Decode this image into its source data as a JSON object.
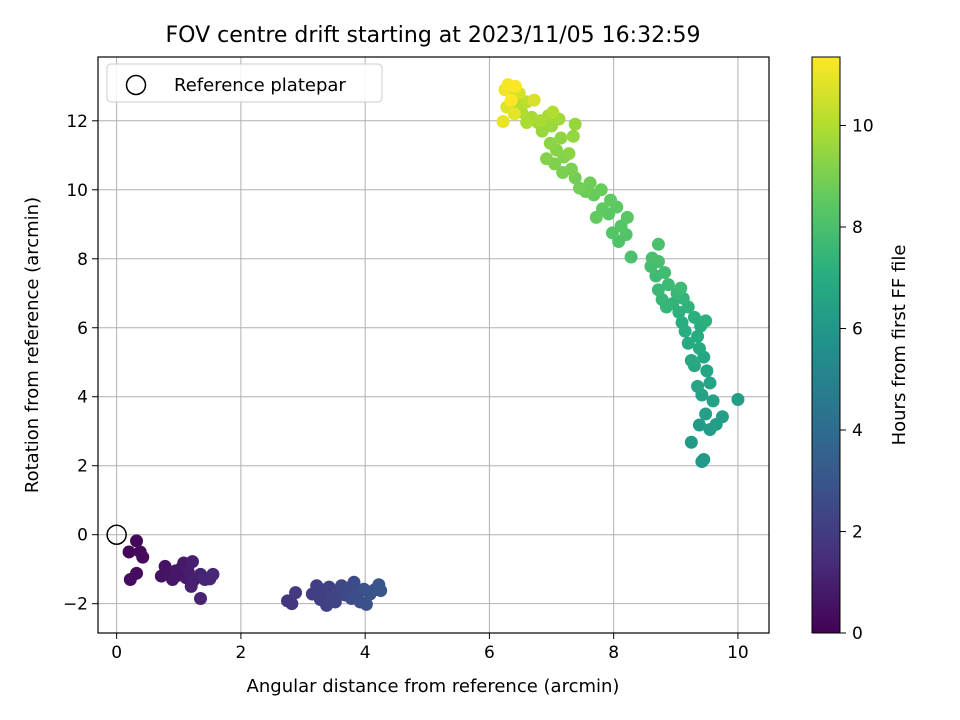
{
  "chart_data": {
    "type": "scatter",
    "title": "FOV centre drift starting at 2023/11/05 16:32:59",
    "xlabel": "Angular distance from reference (arcmin)",
    "ylabel": "Rotation from reference (arcmin)",
    "xlim": [
      -0.3,
      10.5
    ],
    "ylim": [
      -2.85,
      13.85
    ],
    "xticks": [
      0,
      2,
      4,
      6,
      8,
      10
    ],
    "yticks": [
      -2,
      0,
      2,
      4,
      6,
      8,
      10,
      12
    ],
    "xtick_labels": [
      "0",
      "2",
      "4",
      "6",
      "8",
      "10"
    ],
    "ytick_labels": [
      "−2",
      "0",
      "2",
      "4",
      "6",
      "8",
      "10",
      "12"
    ],
    "grid": true,
    "legend": {
      "position": "upper-left",
      "entries": [
        "Reference platepar"
      ]
    },
    "reference_point": {
      "x": 0,
      "y": 0,
      "label": "Reference platepar"
    },
    "colorbar": {
      "label": "Hours from first FF file",
      "range": [
        0,
        11.35
      ],
      "ticks": [
        0,
        2,
        4,
        6,
        8,
        10
      ],
      "tick_labels": [
        "0",
        "2",
        "4",
        "6",
        "8",
        "10"
      ],
      "colormap": "viridis"
    },
    "points": [
      {
        "x": 0.2,
        "y": -0.5,
        "t": 0.1
      },
      {
        "x": 0.32,
        "y": -0.18,
        "t": 0.2
      },
      {
        "x": 0.38,
        "y": -0.5,
        "t": 0.25
      },
      {
        "x": 0.42,
        "y": -0.65,
        "t": 0.3
      },
      {
        "x": 0.32,
        "y": -1.12,
        "t": 0.35
      },
      {
        "x": 0.22,
        "y": -1.3,
        "t": 0.4
      },
      {
        "x": 0.72,
        "y": -1.2,
        "t": 0.5
      },
      {
        "x": 0.78,
        "y": -0.92,
        "t": 0.55
      },
      {
        "x": 0.85,
        "y": -1.1,
        "t": 0.6
      },
      {
        "x": 0.9,
        "y": -1.3,
        "t": 0.65
      },
      {
        "x": 0.95,
        "y": -1.05,
        "t": 0.7
      },
      {
        "x": 1.05,
        "y": -0.95,
        "t": 0.75
      },
      {
        "x": 1.08,
        "y": -0.82,
        "t": 0.8
      },
      {
        "x": 1.12,
        "y": -1.25,
        "t": 0.85
      },
      {
        "x": 1.15,
        "y": -1.05,
        "t": 0.9
      },
      {
        "x": 1.22,
        "y": -0.78,
        "t": 0.95
      },
      {
        "x": 1.25,
        "y": -1.3,
        "t": 1.0
      },
      {
        "x": 1.2,
        "y": -1.5,
        "t": 1.05
      },
      {
        "x": 1.35,
        "y": -1.15,
        "t": 1.1
      },
      {
        "x": 1.35,
        "y": -1.85,
        "t": 1.12
      },
      {
        "x": 1.42,
        "y": -1.3,
        "t": 1.15
      },
      {
        "x": 1.5,
        "y": -1.28,
        "t": 1.2
      },
      {
        "x": 1.55,
        "y": -1.15,
        "t": 1.25
      },
      {
        "x": 0.98,
        "y": -1.18,
        "t": 0.72
      },
      {
        "x": 2.75,
        "y": -1.92,
        "t": 1.8
      },
      {
        "x": 2.82,
        "y": -2.0,
        "t": 1.85
      },
      {
        "x": 2.88,
        "y": -1.68,
        "t": 1.9
      },
      {
        "x": 3.15,
        "y": -1.72,
        "t": 2.0
      },
      {
        "x": 3.22,
        "y": -1.48,
        "t": 2.05
      },
      {
        "x": 3.28,
        "y": -1.88,
        "t": 2.1
      },
      {
        "x": 3.32,
        "y": -1.6,
        "t": 2.12
      },
      {
        "x": 3.38,
        "y": -2.05,
        "t": 2.15
      },
      {
        "x": 3.42,
        "y": -1.52,
        "t": 2.2
      },
      {
        "x": 3.45,
        "y": -1.8,
        "t": 2.25
      },
      {
        "x": 3.52,
        "y": -1.95,
        "t": 2.3
      },
      {
        "x": 3.58,
        "y": -1.62,
        "t": 2.35
      },
      {
        "x": 3.62,
        "y": -1.48,
        "t": 2.4
      },
      {
        "x": 3.68,
        "y": -1.75,
        "t": 2.45
      },
      {
        "x": 3.72,
        "y": -1.55,
        "t": 2.5
      },
      {
        "x": 3.78,
        "y": -1.85,
        "t": 2.55
      },
      {
        "x": 3.82,
        "y": -1.38,
        "t": 2.6
      },
      {
        "x": 3.88,
        "y": -1.7,
        "t": 2.65
      },
      {
        "x": 3.92,
        "y": -1.95,
        "t": 2.7
      },
      {
        "x": 3.98,
        "y": -1.58,
        "t": 2.75
      },
      {
        "x": 4.02,
        "y": -2.02,
        "t": 2.8
      },
      {
        "x": 4.08,
        "y": -1.72,
        "t": 2.85
      },
      {
        "x": 4.15,
        "y": -1.6,
        "t": 2.9
      },
      {
        "x": 4.22,
        "y": -1.45,
        "t": 2.95
      },
      {
        "x": 4.25,
        "y": -1.62,
        "t": 3.0
      },
      {
        "x": 9.42,
        "y": 2.12,
        "t": 6.0
      },
      {
        "x": 9.45,
        "y": 2.18,
        "t": 6.05
      },
      {
        "x": 9.25,
        "y": 2.68,
        "t": 6.1
      },
      {
        "x": 9.38,
        "y": 3.18,
        "t": 6.15
      },
      {
        "x": 9.55,
        "y": 3.05,
        "t": 6.2
      },
      {
        "x": 9.65,
        "y": 3.2,
        "t": 6.25
      },
      {
        "x": 9.75,
        "y": 3.42,
        "t": 6.3
      },
      {
        "x": 10.0,
        "y": 3.92,
        "t": 6.35
      },
      {
        "x": 9.48,
        "y": 3.5,
        "t": 6.4
      },
      {
        "x": 9.6,
        "y": 3.88,
        "t": 6.45
      },
      {
        "x": 9.42,
        "y": 4.05,
        "t": 6.5
      },
      {
        "x": 9.55,
        "y": 4.4,
        "t": 6.55
      },
      {
        "x": 9.35,
        "y": 4.3,
        "t": 6.6
      },
      {
        "x": 9.5,
        "y": 4.75,
        "t": 6.65
      },
      {
        "x": 9.3,
        "y": 4.9,
        "t": 6.7
      },
      {
        "x": 9.45,
        "y": 5.15,
        "t": 6.75
      },
      {
        "x": 9.25,
        "y": 5.05,
        "t": 6.8
      },
      {
        "x": 9.38,
        "y": 5.4,
        "t": 6.85
      },
      {
        "x": 9.2,
        "y": 5.55,
        "t": 6.9
      },
      {
        "x": 9.35,
        "y": 5.75,
        "t": 6.95
      },
      {
        "x": 9.15,
        "y": 5.9,
        "t": 7.0
      },
      {
        "x": 9.4,
        "y": 6.05,
        "t": 7.05
      },
      {
        "x": 9.1,
        "y": 6.15,
        "t": 7.1
      },
      {
        "x": 9.3,
        "y": 6.3,
        "t": 7.15
      },
      {
        "x": 9.48,
        "y": 6.2,
        "t": 7.2
      },
      {
        "x": 9.05,
        "y": 6.45,
        "t": 7.25
      },
      {
        "x": 9.2,
        "y": 6.6,
        "t": 7.3
      },
      {
        "x": 8.95,
        "y": 6.7,
        "t": 7.35
      },
      {
        "x": 9.12,
        "y": 6.85,
        "t": 7.4
      },
      {
        "x": 8.85,
        "y": 6.6,
        "t": 7.45
      },
      {
        "x": 8.78,
        "y": 6.82,
        "t": 7.5
      },
      {
        "x": 9.02,
        "y": 7.0,
        "t": 7.55
      },
      {
        "x": 8.72,
        "y": 7.1,
        "t": 7.6
      },
      {
        "x": 8.88,
        "y": 7.25,
        "t": 7.65
      },
      {
        "x": 9.08,
        "y": 7.15,
        "t": 7.7
      },
      {
        "x": 8.68,
        "y": 7.5,
        "t": 7.75
      },
      {
        "x": 8.82,
        "y": 7.6,
        "t": 7.8
      },
      {
        "x": 8.6,
        "y": 7.78,
        "t": 7.85
      },
      {
        "x": 8.72,
        "y": 7.92,
        "t": 7.9
      },
      {
        "x": 8.62,
        "y": 8.02,
        "t": 7.95
      },
      {
        "x": 8.72,
        "y": 8.42,
        "t": 8.0
      },
      {
        "x": 8.28,
        "y": 8.05,
        "t": 8.05
      },
      {
        "x": 8.08,
        "y": 8.5,
        "t": 8.15
      },
      {
        "x": 8.2,
        "y": 8.7,
        "t": 8.2
      },
      {
        "x": 7.98,
        "y": 8.75,
        "t": 8.25
      },
      {
        "x": 8.12,
        "y": 8.95,
        "t": 8.3
      },
      {
        "x": 8.22,
        "y": 9.2,
        "t": 8.35
      },
      {
        "x": 7.92,
        "y": 9.3,
        "t": 8.4
      },
      {
        "x": 8.05,
        "y": 9.5,
        "t": 8.45
      },
      {
        "x": 7.82,
        "y": 9.45,
        "t": 8.5
      },
      {
        "x": 7.95,
        "y": 9.7,
        "t": 8.55
      },
      {
        "x": 7.72,
        "y": 9.2,
        "t": 8.6
      },
      {
        "x": 7.68,
        "y": 9.85,
        "t": 8.65
      },
      {
        "x": 7.8,
        "y": 10.0,
        "t": 8.7
      },
      {
        "x": 7.55,
        "y": 9.95,
        "t": 8.75
      },
      {
        "x": 7.62,
        "y": 10.2,
        "t": 8.8
      },
      {
        "x": 7.45,
        "y": 10.05,
        "t": 8.85
      },
      {
        "x": 7.38,
        "y": 10.35,
        "t": 8.9
      },
      {
        "x": 7.18,
        "y": 10.5,
        "t": 9.0
      },
      {
        "x": 7.32,
        "y": 10.6,
        "t": 9.05
      },
      {
        "x": 7.05,
        "y": 10.75,
        "t": 9.1
      },
      {
        "x": 7.2,
        "y": 10.95,
        "t": 9.15
      },
      {
        "x": 6.92,
        "y": 10.9,
        "t": 9.2
      },
      {
        "x": 7.08,
        "y": 11.15,
        "t": 9.25
      },
      {
        "x": 7.28,
        "y": 11.05,
        "t": 9.3
      },
      {
        "x": 6.98,
        "y": 11.35,
        "t": 9.35
      },
      {
        "x": 7.15,
        "y": 11.5,
        "t": 9.4
      },
      {
        "x": 7.35,
        "y": 11.55,
        "t": 9.45
      },
      {
        "x": 7.38,
        "y": 11.9,
        "t": 9.5
      },
      {
        "x": 6.85,
        "y": 11.7,
        "t": 9.55
      },
      {
        "x": 7.0,
        "y": 11.85,
        "t": 9.6
      },
      {
        "x": 6.78,
        "y": 11.95,
        "t": 9.65
      },
      {
        "x": 7.12,
        "y": 12.05,
        "t": 9.7
      },
      {
        "x": 6.95,
        "y": 12.15,
        "t": 9.75
      },
      {
        "x": 6.68,
        "y": 12.1,
        "t": 9.8
      },
      {
        "x": 6.82,
        "y": 12.0,
        "t": 9.85
      },
      {
        "x": 6.6,
        "y": 11.95,
        "t": 9.9
      },
      {
        "x": 6.52,
        "y": 12.25,
        "t": 9.95
      },
      {
        "x": 7.02,
        "y": 12.25,
        "t": 10.0
      },
      {
        "x": 6.45,
        "y": 12.45,
        "t": 10.1
      },
      {
        "x": 6.6,
        "y": 12.55,
        "t": 10.2
      },
      {
        "x": 6.38,
        "y": 12.75,
        "t": 10.4
      },
      {
        "x": 6.48,
        "y": 12.8,
        "t": 10.6
      },
      {
        "x": 6.72,
        "y": 12.6,
        "t": 10.7
      },
      {
        "x": 6.28,
        "y": 12.4,
        "t": 10.8
      },
      {
        "x": 6.4,
        "y": 12.2,
        "t": 10.9
      },
      {
        "x": 6.22,
        "y": 11.98,
        "t": 11.0
      },
      {
        "x": 6.25,
        "y": 12.9,
        "t": 11.1
      },
      {
        "x": 6.3,
        "y": 13.05,
        "t": 11.2
      },
      {
        "x": 6.42,
        "y": 13.0,
        "t": 11.3
      },
      {
        "x": 6.35,
        "y": 12.6,
        "t": 11.35
      }
    ]
  }
}
